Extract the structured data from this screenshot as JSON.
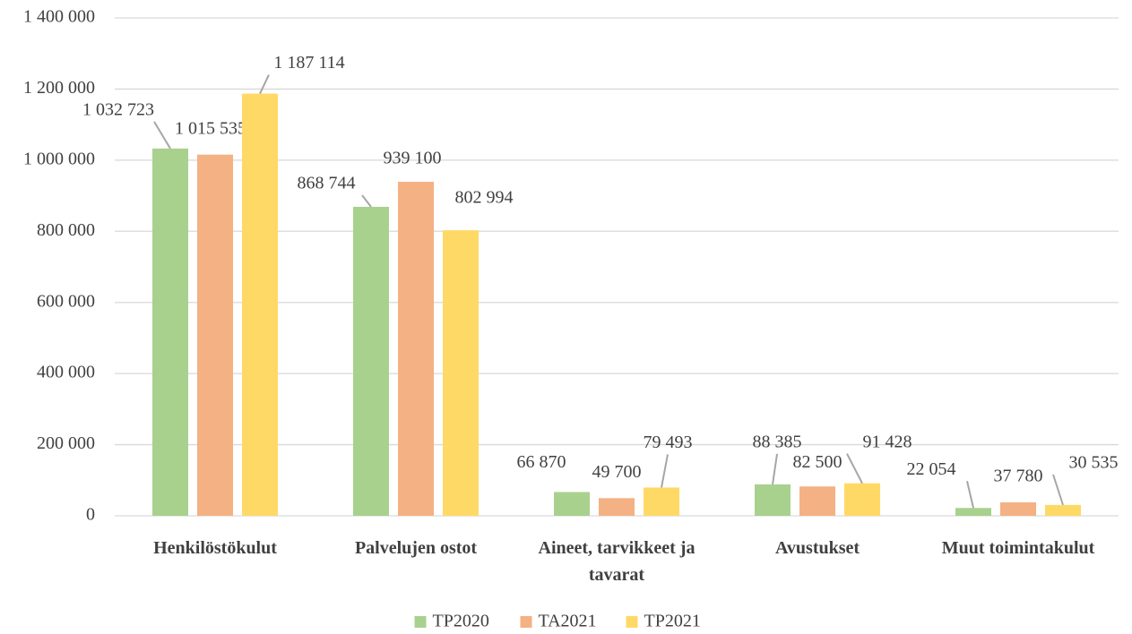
{
  "chart_data": {
    "type": "bar",
    "categories": [
      "Henkilöstökulut",
      "Palvelujen ostot",
      "Aineet, tarvikkeet ja tavarat",
      "Avustukset",
      "Muut toimintakulut"
    ],
    "series": [
      {
        "name": "TP2020",
        "color": "#a9d18e",
        "values": [
          1032723,
          868744,
          66870,
          88385,
          22054
        ],
        "value_labels": [
          "1 032 723",
          "868 744",
          "66 870",
          "88 385",
          "22 054"
        ]
      },
      {
        "name": "TA2021",
        "color": "#f4b183",
        "values": [
          1015535,
          939100,
          49700,
          82500,
          37780
        ],
        "value_labels": [
          "1 015 535",
          "939 100",
          "49 700",
          "82 500",
          "37 780"
        ]
      },
      {
        "name": "TP2021",
        "color": "#ffd966",
        "values": [
          1187114,
          802994,
          79493,
          91428,
          30535
        ],
        "value_labels": [
          "1 187 114",
          "802 994",
          "79 493",
          "91 428",
          "30 535"
        ]
      }
    ],
    "ylim": [
      0,
      1400000
    ],
    "yticks": [
      0,
      {
        "value": 200000,
        "label": "200 000"
      },
      {
        "value": 400000,
        "label": "400 000"
      },
      {
        "value": 600000,
        "label": "600 000"
      },
      {
        "value": 800000,
        "label": "800 000"
      },
      {
        "value": 1000000,
        "label": "1 000 000"
      },
      {
        "value": 1200000,
        "label": "1 200 000"
      },
      {
        "value": 1400000,
        "label": "1 400 000"
      }
    ],
    "grid": true,
    "legend": "bottom"
  }
}
